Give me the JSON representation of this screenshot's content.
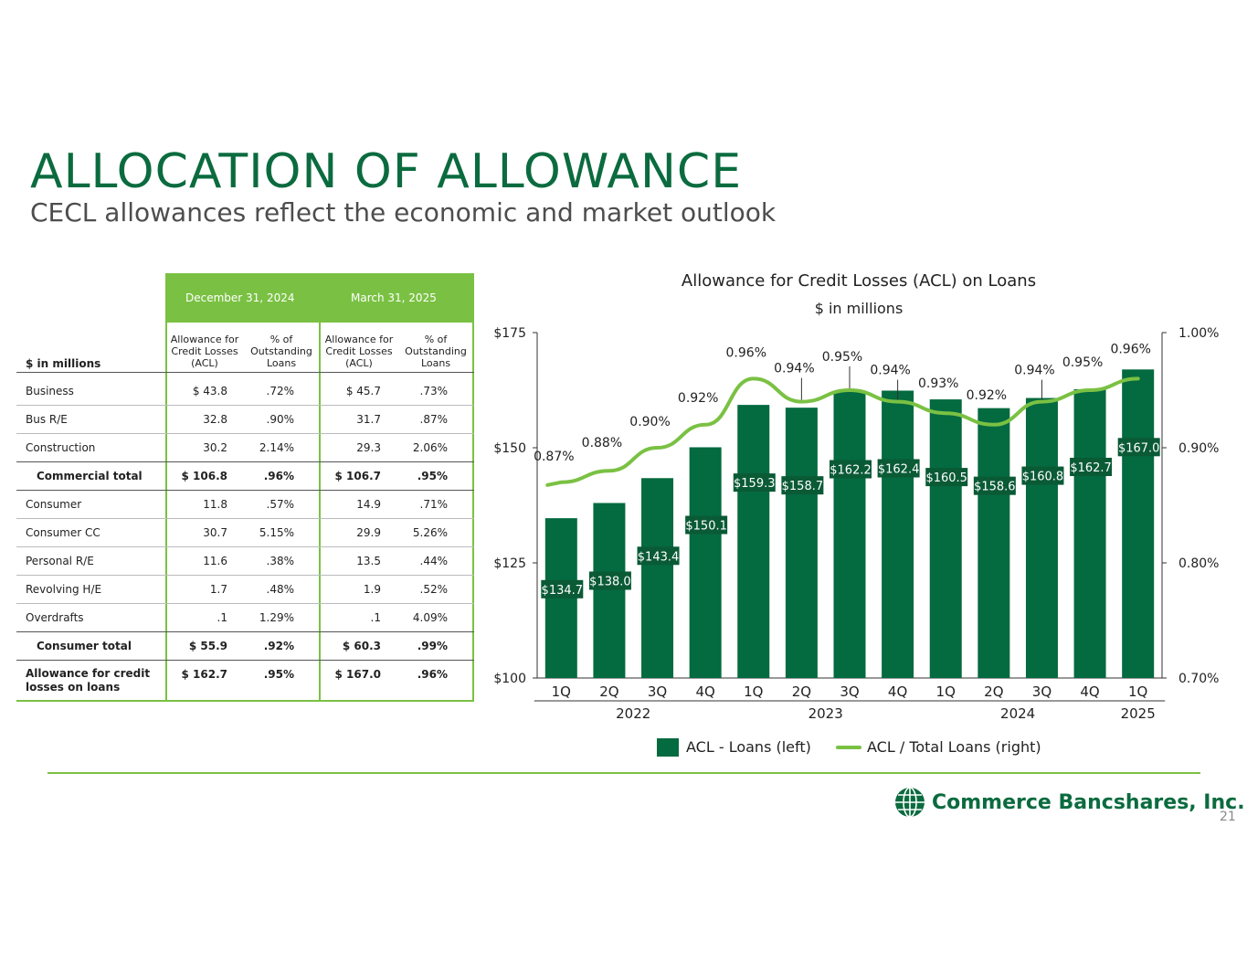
{
  "header": {
    "title": "ALLOCATION OF ALLOWANCE",
    "subtitle": "CECL allowances reflect the economic and market outlook"
  },
  "table": {
    "periods": [
      "December 31, 2024",
      "March 31, 2025"
    ],
    "unit_label": "$ in millions",
    "col_headers": [
      "Allowance for Credit Losses (ACL)",
      "% of Outstanding Loans",
      "Allowance for Credit Losses (ACL)",
      "% of Outstanding Loans"
    ],
    "rows": [
      {
        "label": "Business",
        "v": [
          "$  43.8",
          ".72%",
          "$  45.7",
          ".73%"
        ]
      },
      {
        "label": "Bus R/E",
        "v": [
          "32.8",
          ".90%",
          "31.7",
          ".87%"
        ]
      },
      {
        "label": "Construction",
        "v": [
          "30.2",
          "2.14%",
          "29.3",
          "2.06%"
        ]
      },
      {
        "label": "Commercial total",
        "v": [
          "$  106.8",
          ".96%",
          "$  106.7",
          ".95%"
        ]
      },
      {
        "label": "Consumer",
        "v": [
          "11.8",
          ".57%",
          "14.9",
          ".71%"
        ]
      },
      {
        "label": "Consumer CC",
        "v": [
          "30.7",
          "5.15%",
          "29.9",
          "5.26%"
        ]
      },
      {
        "label": "Personal R/E",
        "v": [
          "11.6",
          ".38%",
          "13.5",
          ".44%"
        ]
      },
      {
        "label": "Revolving H/E",
        "v": [
          "1.7",
          ".48%",
          "1.9",
          ".52%"
        ]
      },
      {
        "label": "Overdrafts",
        "v": [
          ".1",
          "1.29%",
          ".1",
          "4.09%"
        ]
      },
      {
        "label": "Consumer total",
        "v": [
          "$  55.9",
          ".92%",
          "$  60.3",
          ".99%"
        ]
      },
      {
        "label": "Allowance for credit losses on loans",
        "v": [
          "$  162.7",
          ".95%",
          "$  167.0",
          ".96%"
        ]
      }
    ]
  },
  "chart_data": {
    "type": "bar",
    "title": "Allowance for Credit Losses (ACL) on Loans",
    "subtitle": "$ in millions",
    "categories": [
      "1Q",
      "2Q",
      "3Q",
      "4Q",
      "1Q",
      "2Q",
      "3Q",
      "4Q",
      "1Q",
      "2Q",
      "3Q",
      "4Q",
      "1Q"
    ],
    "year_groups": [
      {
        "label": "2022",
        "start": 0,
        "end": 3
      },
      {
        "label": "2023",
        "start": 4,
        "end": 7
      },
      {
        "label": "2024",
        "start": 8,
        "end": 11
      },
      {
        "label": "2025",
        "start": 12,
        "end": 12
      }
    ],
    "series": [
      {
        "name": "ACL - Loans (left)",
        "type": "bar",
        "color": "#046a3f",
        "values": [
          134.7,
          138.0,
          143.4,
          150.1,
          159.3,
          158.7,
          162.2,
          162.4,
          160.5,
          158.6,
          160.8,
          162.7,
          167.0
        ],
        "labels": [
          "$134.7",
          "$138.0",
          "$143.4",
          "$150.1",
          "$159.3",
          "$158.7",
          "$162.2",
          "$162.4",
          "$160.5",
          "$158.6",
          "$160.8",
          "$162.7",
          "$167.0"
        ]
      },
      {
        "name": "ACL / Total Loans (right)",
        "type": "line",
        "color": "#7ac143",
        "values": [
          0.87,
          0.88,
          0.9,
          0.92,
          0.96,
          0.94,
          0.95,
          0.94,
          0.93,
          0.92,
          0.94,
          0.95,
          0.96
        ],
        "labels": [
          "0.87%",
          "0.88%",
          "0.90%",
          "0.92%",
          "0.96%",
          "0.94%",
          "0.95%",
          "0.94%",
          "0.93%",
          "0.92%",
          "0.94%",
          "0.95%",
          "0.96%"
        ]
      }
    ],
    "ylim_left": [
      100,
      175
    ],
    "yticks_left": [
      "$100",
      "$125",
      "$150",
      "$175"
    ],
    "ylim_right": [
      0.7,
      1.0
    ],
    "yticks_right": [
      "0.70%",
      "0.80%",
      "0.90%",
      "1.00%"
    ],
    "legend": "bottom"
  },
  "footer": {
    "logo_text": "Commerce Bancshares, Inc.",
    "page": "21"
  }
}
